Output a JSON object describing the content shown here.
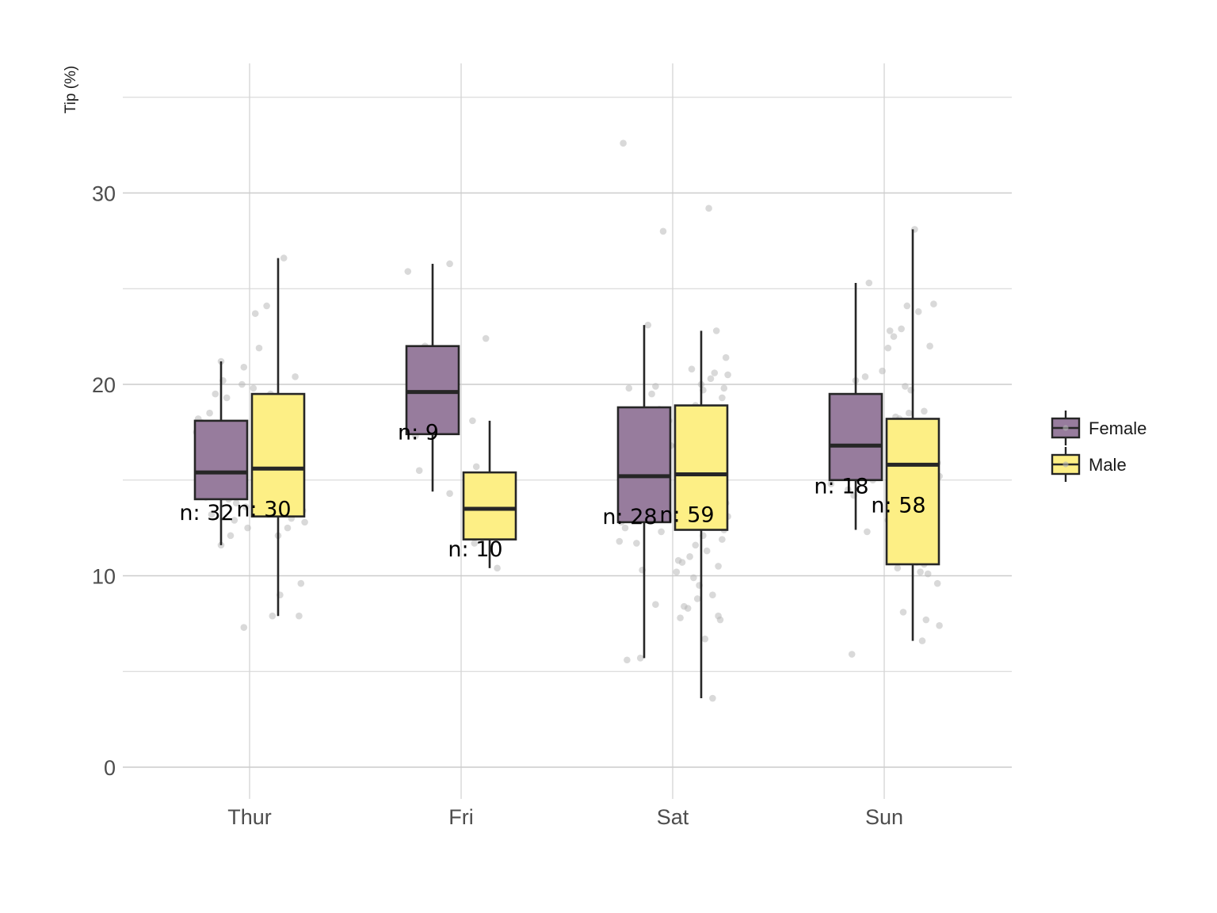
{
  "chart_data": {
    "type": "box",
    "title": "",
    "xlabel": "",
    "ylabel": "Tip (%)",
    "ylim": [
      -1.7,
      36.5
    ],
    "yticks": [
      0,
      10,
      20,
      30
    ],
    "minor_yticks": [
      5,
      15,
      25,
      35
    ],
    "grid": true,
    "legend_position": "right",
    "categories": [
      "Thur",
      "Fri",
      "Sat",
      "Sun"
    ],
    "colors": {
      "Female": "#977c9d",
      "Male": "#fdef85"
    },
    "series": [
      {
        "name": "Female",
        "boxes": [
          {
            "category": "Thur",
            "whisker_low": 11.6,
            "q1": 14.0,
            "median": 15.4,
            "q3": 18.1,
            "whisker_high": 21.2,
            "n_label": "n: 32",
            "outliers": [
              7.3
            ],
            "points": [
              21.2,
              20.9,
              20.2,
              20.0,
              19.5,
              19.3,
              18.5,
              18.2,
              18.0,
              17.7,
              17.5,
              17.3,
              16.9,
              16.3,
              16.0,
              15.8,
              15.5,
              15.4,
              15.1,
              14.8,
              14.7,
              14.5,
              14.1,
              14.0,
              13.8,
              13.6,
              13.2,
              12.9,
              12.5,
              12.1,
              11.6,
              7.3
            ]
          },
          {
            "category": "Fri",
            "whisker_low": 14.4,
            "q1": 17.4,
            "median": 19.6,
            "q3": 22.0,
            "whisker_high": 26.3,
            "n_label": "n: 9",
            "outliers": [],
            "points": [
              26.3,
              25.9,
              22.0,
              19.8,
              19.5,
              18.8,
              17.3,
              15.5,
              14.3
            ]
          },
          {
            "category": "Sat",
            "whisker_low": 5.7,
            "q1": 12.8,
            "median": 15.2,
            "q3": 18.8,
            "whisker_high": 23.1,
            "n_label": "n: 28",
            "outliers": [
              28.0,
              32.6
            ],
            "points": [
              32.6,
              28.0,
              23.1,
              19.9,
              19.8,
              19.5,
              18.7,
              18.1,
              17.6,
              17.5,
              16.8,
              15.5,
              15.3,
              15.0,
              14.6,
              14.2,
              13.7,
              13.4,
              13.0,
              12.8,
              12.5,
              12.3,
              11.8,
              11.7,
              10.3,
              8.5,
              5.7,
              5.6
            ]
          },
          {
            "category": "Sun",
            "whisker_low": 12.4,
            "q1": 15.0,
            "median": 16.8,
            "q3": 19.5,
            "whisker_high": 25.3,
            "n_label": "n: 18",
            "outliers": [
              5.9
            ],
            "points": [
              25.3,
              20.7,
              20.4,
              20.2,
              19.0,
              18.4,
              17.4,
              17.2,
              17.0,
              16.4,
              15.8,
              15.5,
              15.0,
              14.8,
              14.5,
              14.2,
              12.3,
              5.9
            ]
          }
        ]
      },
      {
        "name": "Male",
        "boxes": [
          {
            "category": "Thur",
            "whisker_low": 7.9,
            "q1": 13.1,
            "median": 15.6,
            "q3": 19.5,
            "whisker_high": 26.6,
            "n_label": "n: 30",
            "outliers": [],
            "points": [
              26.6,
              24.1,
              23.7,
              21.9,
              20.4,
              19.8,
              19.5,
              19.0,
              17.6,
              17.3,
              16.8,
              15.9,
              15.7,
              15.4,
              15.3,
              14.9,
              14.5,
              14.2,
              13.9,
              13.6,
              13.4,
              13.2,
              13.0,
              12.8,
              12.5,
              12.1,
              9.6,
              9.0,
              7.9,
              7.9
            ]
          },
          {
            "category": "Fri",
            "whisker_low": 10.4,
            "q1": 11.9,
            "median": 13.5,
            "q3": 15.4,
            "whisker_high": 18.1,
            "n_label": "n: 10",
            "outliers": [
              22.4
            ],
            "points": [
              22.4,
              18.1,
              15.7,
              14.7,
              14.3,
              13.6,
              12.6,
              12.0,
              11.7,
              10.4
            ]
          },
          {
            "category": "Sat",
            "whisker_low": 3.6,
            "q1": 12.4,
            "median": 15.3,
            "q3": 18.9,
            "whisker_high": 22.8,
            "n_label": "n: 59",
            "outliers": [
              29.2
            ],
            "points": [
              29.2,
              22.8,
              21.4,
              20.8,
              20.6,
              20.5,
              20.3,
              20.0,
              19.8,
              19.7,
              19.3,
              18.9,
              18.6,
              18.4,
              18.1,
              17.7,
              17.2,
              16.8,
              16.4,
              16.1,
              15.9,
              15.8,
              15.7,
              15.4,
              15.3,
              15.1,
              15.0,
              14.8,
              14.6,
              14.4,
              14.1,
              13.9,
              13.8,
              13.5,
              13.3,
              13.1,
              12.9,
              12.6,
              12.4,
              12.1,
              11.9,
              11.6,
              11.3,
              11.0,
              10.8,
              10.7,
              10.5,
              10.2,
              9.9,
              9.5,
              9.0,
              8.8,
              8.4,
              8.3,
              7.9,
              7.8,
              7.7,
              6.7,
              3.6
            ]
          },
          {
            "category": "Sun",
            "whisker_low": 6.6,
            "q1": 10.6,
            "median": 15.8,
            "q3": 18.2,
            "whisker_high": 28.1,
            "n_label": "n: 58",
            "outliers": [],
            "points": [
              28.1,
              24.2,
              24.1,
              23.8,
              22.9,
              22.8,
              22.5,
              22.0,
              21.9,
              19.9,
              19.7,
              18.6,
              18.5,
              18.3,
              18.2,
              18.0,
              17.6,
              17.1,
              16.8,
              16.5,
              16.4,
              16.2,
              16.0,
              15.9,
              15.7,
              15.4,
              15.2,
              15.0,
              14.8,
              14.6,
              14.5,
              14.3,
              14.2,
              14.0,
              13.8,
              13.5,
              13.3,
              13.1,
              12.9,
              12.6,
              12.3,
              12.0,
              11.7,
              11.4,
              11.2,
              11.0,
              10.9,
              10.8,
              10.7,
              10.6,
              10.4,
              10.2,
              10.1,
              9.6,
              8.1,
              7.7,
              7.4,
              6.6
            ]
          }
        ]
      }
    ]
  }
}
